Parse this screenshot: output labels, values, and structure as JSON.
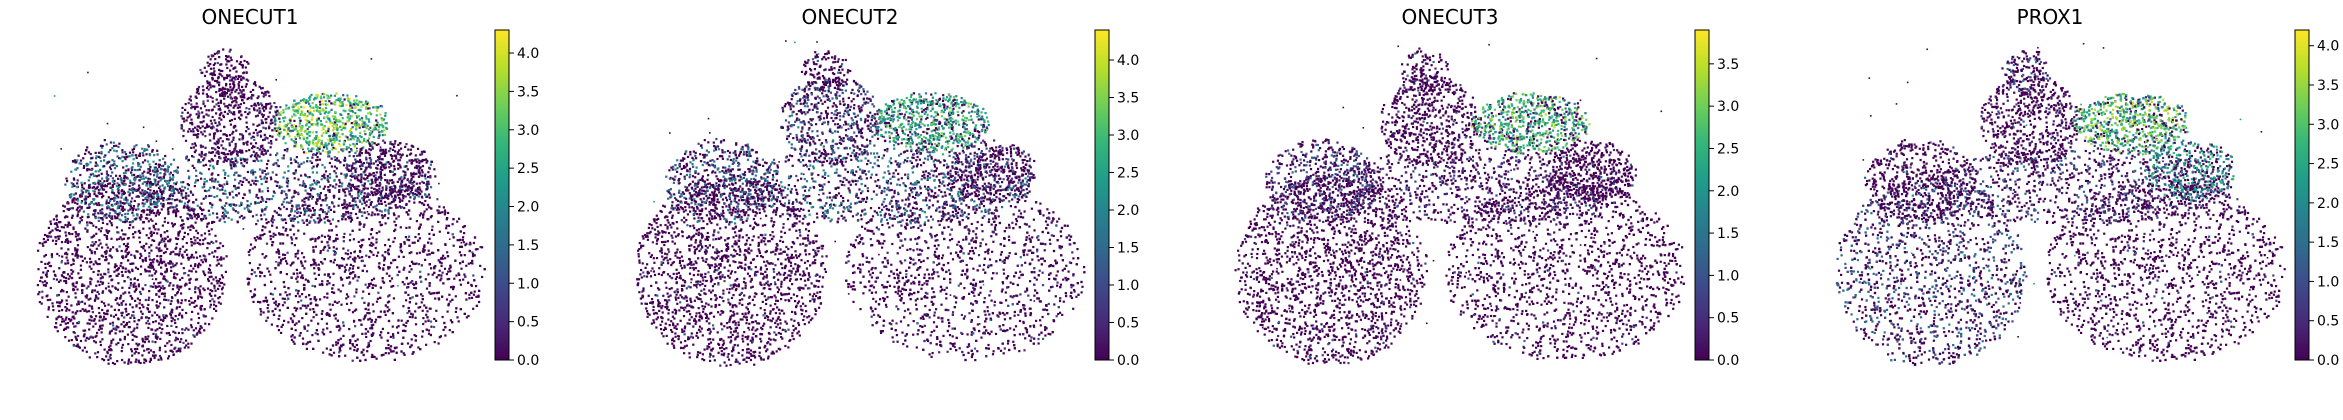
{
  "chart_data": [
    {
      "type": "scatter",
      "title": "ONECUT1",
      "colormap": "viridis",
      "colorbar": {
        "range": [
          0,
          4.3
        ],
        "ticks": [
          "0.0",
          "0.5",
          "1.0",
          "1.5",
          "2.0",
          "2.5",
          "3.0",
          "3.5",
          "4.0"
        ]
      },
      "axes_visible": false,
      "high_expression_regions": [
        "upper-middle lobe",
        "central band"
      ]
    },
    {
      "type": "scatter",
      "title": "ONECUT2",
      "colormap": "viridis",
      "colorbar": {
        "range": [
          0,
          4.4
        ],
        "ticks": [
          "0.0",
          "0.5",
          "1.0",
          "1.5",
          "2.0",
          "2.5",
          "3.0",
          "3.5",
          "4.0"
        ]
      },
      "axes_visible": false,
      "high_expression_regions": [
        "upper-middle lobe",
        "central band"
      ]
    },
    {
      "type": "scatter",
      "title": "ONECUT3",
      "colormap": "viridis",
      "colorbar": {
        "range": [
          0,
          3.9
        ],
        "ticks": [
          "0.0",
          "0.5",
          "1.0",
          "1.5",
          "2.0",
          "2.5",
          "3.0",
          "3.5"
        ]
      },
      "axes_visible": false,
      "high_expression_regions": [
        "upper-middle lobe"
      ]
    },
    {
      "type": "scatter",
      "title": "PROX1",
      "colormap": "viridis",
      "colorbar": {
        "range": [
          0,
          4.2
        ],
        "ticks": [
          "0.0",
          "0.5",
          "1.0",
          "1.5",
          "2.0",
          "2.5",
          "3.0",
          "3.5",
          "4.0"
        ]
      },
      "axes_visible": false,
      "high_expression_regions": [
        "upper-middle lobe",
        "right-middle lobe",
        "left lobe (moderate)"
      ]
    }
  ],
  "colors": {
    "background": "#ffffff",
    "viridis": [
      "#440154",
      "#482878",
      "#3e4989",
      "#31688e",
      "#26828e",
      "#1f9e89",
      "#35b779",
      "#6ece58",
      "#b5de2b",
      "#fde725"
    ]
  }
}
